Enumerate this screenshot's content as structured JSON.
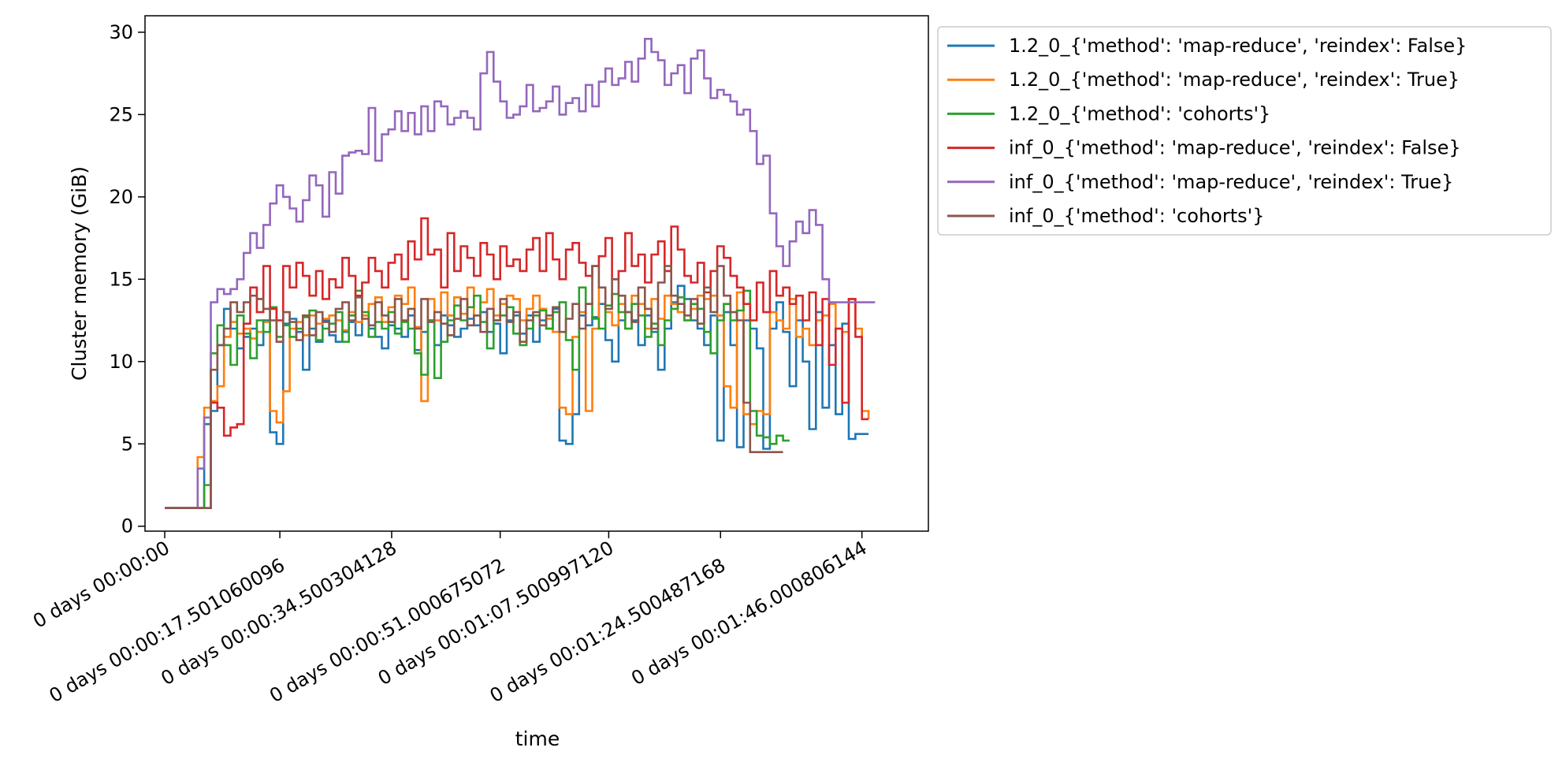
{
  "chart_data": {
    "type": "line",
    "title": "",
    "xlabel": "time",
    "ylabel": "Cluster memory (GiB)",
    "xlim": [
      -3.0,
      116.1
    ],
    "ylim": [
      -0.3,
      31.0
    ],
    "xticks": [
      {
        "value": 0,
        "label": "0 days 00:00:00"
      },
      {
        "value": 17.501060096,
        "label": "0 days 00:00:17.501060096"
      },
      {
        "value": 34.500304128,
        "label": "0 days 00:00:34.500304128"
      },
      {
        "value": 51.000675072,
        "label": "0 days 00:00:51.000675072"
      },
      {
        "value": 67.50099712,
        "label": "0 days 00:01:07.500997120"
      },
      {
        "value": 84.500487168,
        "label": "0 days 00:01:24.500487168"
      },
      {
        "value": 106.000806144,
        "label": "0 days 00:01:46.000806144"
      }
    ],
    "yticks": [
      0,
      5,
      10,
      15,
      20,
      25,
      30
    ],
    "legend_position": "outside-right",
    "series": [
      {
        "name": "1.2_0_{'method': 'map-reduce', 'reindex': False}",
        "color": "#1f77b4",
        "x": [
          0,
          5,
          6,
          7,
          8,
          9,
          10,
          11,
          12,
          13,
          14,
          15,
          16,
          17,
          18,
          19,
          20,
          21,
          22,
          23,
          24,
          25,
          26,
          27,
          28,
          29,
          30,
          31,
          32,
          33,
          34,
          35,
          36,
          37,
          38,
          39,
          40,
          41,
          42,
          43,
          44,
          45,
          46,
          47,
          48,
          49,
          50,
          51,
          52,
          53,
          54,
          55,
          56,
          57,
          58,
          59,
          60,
          61,
          62,
          63,
          64,
          65,
          66,
          67,
          68,
          69,
          70,
          71,
          72,
          73,
          74,
          75,
          76,
          77,
          78,
          79,
          80,
          81,
          82,
          83,
          84,
          85,
          86,
          87,
          88,
          89,
          90,
          91,
          92,
          93,
          94,
          95,
          96,
          97,
          98,
          99,
          100,
          101,
          102,
          103,
          104,
          105,
          106,
          107
        ],
        "y": [
          1.1,
          1.1,
          6.2,
          7.0,
          11.0,
          13.2,
          12.0,
          10.8,
          11.5,
          12.0,
          11.0,
          12.5,
          5.7,
          5.0,
          12.3,
          12.6,
          11.8,
          9.5,
          12.0,
          11.2,
          12.5,
          11.6,
          11.2,
          11.8,
          12.4,
          11.6,
          12.8,
          12.0,
          11.5,
          10.8,
          12.2,
          12.0,
          11.5,
          12.8,
          10.7,
          11.8,
          12.5,
          11.0,
          12.8,
          12.2,
          11.5,
          12.0,
          12.6,
          12.2,
          13.0,
          11.8,
          12.3,
          10.5,
          12.5,
          12.8,
          11.7,
          12.8,
          11.2,
          12.5,
          12.0,
          13.2,
          5.2,
          5.0,
          6.8,
          12.8,
          12.2,
          12.7,
          13.5,
          11.3,
          10.0,
          12.5,
          13.0,
          12.5,
          11.0,
          12.8,
          11.8,
          9.5,
          12.0,
          13.6,
          14.6,
          13.8,
          12.5,
          12.0,
          11.0,
          12.8,
          5.2,
          13.0,
          11.0,
          4.8,
          12.5,
          12.0,
          10.8,
          4.7,
          12.0,
          13.6,
          11.8,
          8.5,
          12.5,
          10.0,
          5.9,
          13.0,
          7.2,
          11.0,
          6.8,
          12.3,
          5.3,
          5.6,
          5.6,
          5.6
        ]
      },
      {
        "name": "1.2_0_{'method': 'map-reduce', 'reindex': True}",
        "color": "#ff7f0e",
        "x": [
          0,
          5,
          6,
          7,
          8,
          9,
          10,
          11,
          12,
          13,
          14,
          15,
          16,
          17,
          18,
          19,
          20,
          21,
          22,
          23,
          24,
          25,
          26,
          27,
          28,
          29,
          30,
          31,
          32,
          33,
          34,
          35,
          36,
          37,
          38,
          39,
          40,
          41,
          42,
          43,
          44,
          45,
          46,
          47,
          48,
          49,
          50,
          51,
          52,
          53,
          54,
          55,
          56,
          57,
          58,
          59,
          60,
          61,
          62,
          63,
          64,
          65,
          66,
          67,
          68,
          69,
          70,
          71,
          72,
          73,
          74,
          75,
          76,
          77,
          78,
          79,
          80,
          81,
          82,
          83,
          84,
          85,
          86,
          87,
          88,
          89,
          90,
          91,
          92,
          93,
          94,
          95,
          96,
          97,
          98,
          99,
          100,
          101,
          102,
          103,
          104,
          105,
          106,
          107
        ],
        "y": [
          1.1,
          4.2,
          7.2,
          7.6,
          8.5,
          11.5,
          12.4,
          11.7,
          12.0,
          11.4,
          11.8,
          12.4,
          7.0,
          6.3,
          8.2,
          12.0,
          12.4,
          11.6,
          12.8,
          12.3,
          12.6,
          12.8,
          12.5,
          11.9,
          13.0,
          12.4,
          12.8,
          13.5,
          13.9,
          12.4,
          13.3,
          14.0,
          13.5,
          14.5,
          12.1,
          7.6,
          13.8,
          12.5,
          14.2,
          12.8,
          13.9,
          12.9,
          14.5,
          12.8,
          13.6,
          14.4,
          12.8,
          13.5,
          14.0,
          13.8,
          12.5,
          13.2,
          14.0,
          13.2,
          12.6,
          11.8,
          7.2,
          6.8,
          11.5,
          13.0,
          7.0,
          12.0,
          14.5,
          13.0,
          12.2,
          13.5,
          12.0,
          14.0,
          13.5,
          12.0,
          13.8,
          12.6,
          14.0,
          13.5,
          13.0,
          12.5,
          13.2,
          14.0,
          13.8,
          14.0,
          12.8,
          8.5,
          7.2,
          14.2,
          6.8,
          6.2,
          7.0,
          6.8,
          13.0,
          12.5,
          12.0,
          13.8,
          11.5,
          12.0,
          11.0,
          12.5,
          12.8,
          13.5,
          12.0,
          11.8,
          13.8,
          12.0,
          7.0,
          6.5
        ]
      },
      {
        "name": "1.2_0_{'method': 'cohorts'}",
        "color": "#2ca02c",
        "x": [
          0,
          5,
          6,
          7,
          8,
          9,
          10,
          11,
          12,
          13,
          14,
          15,
          16,
          17,
          18,
          19,
          20,
          21,
          22,
          23,
          24,
          25,
          26,
          27,
          28,
          29,
          30,
          31,
          32,
          33,
          34,
          35,
          36,
          37,
          38,
          39,
          40,
          41,
          42,
          43,
          44,
          45,
          46,
          47,
          48,
          49,
          50,
          51,
          52,
          53,
          54,
          55,
          56,
          57,
          58,
          59,
          60,
          61,
          62,
          63,
          64,
          65,
          66,
          67,
          68,
          69,
          70,
          71,
          72,
          73,
          74,
          75,
          76,
          77,
          78,
          79,
          80,
          81,
          82,
          83,
          84,
          85,
          86,
          87,
          88,
          89,
          90,
          91,
          92,
          93,
          94,
          95
        ],
        "y": [
          1.1,
          1.1,
          2.5,
          10.5,
          12.2,
          11.0,
          9.8,
          12.8,
          11.7,
          10.2,
          12.5,
          11.8,
          13.3,
          11.5,
          12.2,
          11.5,
          12.0,
          12.7,
          13.1,
          11.3,
          12.0,
          12.3,
          13.0,
          11.2,
          12.8,
          14.3,
          13.0,
          11.5,
          12.4,
          12.0,
          13.0,
          11.7,
          12.4,
          12.0,
          10.5,
          9.2,
          12.5,
          9.0,
          11.2,
          12.5,
          13.4,
          12.5,
          13.3,
          14.0,
          12.4,
          10.8,
          12.5,
          12.8,
          13.3,
          11.7,
          11.0,
          12.0,
          12.8,
          13.1,
          12.0,
          13.0,
          13.6,
          11.3,
          9.5,
          14.5,
          13.5,
          12.6,
          12.0,
          13.4,
          14.1,
          13.0,
          12.0,
          13.5,
          12.8,
          11.5,
          12.3,
          11.0,
          12.5,
          13.2,
          13.9,
          12.5,
          13.5,
          13.2,
          11.8,
          10.5,
          12.5,
          13.5,
          12.5,
          13.1,
          14.3,
          7.0,
          5.5,
          5.4,
          5.0,
          5.5,
          5.2,
          5.2
        ]
      },
      {
        "name": "inf_0_{'method': 'map-reduce', 'reindex': False}",
        "color": "#d62728",
        "x": [
          0,
          6,
          7,
          8,
          9,
          10,
          11,
          12,
          13,
          14,
          15,
          16,
          17,
          18,
          19,
          20,
          21,
          22,
          23,
          24,
          25,
          26,
          27,
          28,
          29,
          30,
          31,
          32,
          33,
          34,
          35,
          36,
          37,
          38,
          39,
          40,
          41,
          42,
          43,
          44,
          45,
          46,
          47,
          48,
          49,
          50,
          51,
          52,
          53,
          54,
          55,
          56,
          57,
          58,
          59,
          60,
          61,
          62,
          63,
          64,
          65,
          66,
          67,
          68,
          69,
          70,
          71,
          72,
          73,
          74,
          75,
          76,
          77,
          78,
          79,
          80,
          81,
          82,
          83,
          84,
          85,
          86,
          87,
          88,
          89,
          90,
          91,
          92,
          93,
          94,
          95,
          96,
          97,
          98,
          99,
          100,
          101,
          102,
          103,
          104,
          105,
          106,
          107
        ],
        "y": [
          1.1,
          1.1,
          7.5,
          7.2,
          5.5,
          6.0,
          6.2,
          12.3,
          14.5,
          13.0,
          15.8,
          13.2,
          12.5,
          15.8,
          14.5,
          16.0,
          15.2,
          14.0,
          15.5,
          13.8,
          15.0,
          14.5,
          16.3,
          15.2,
          14.0,
          14.8,
          16.3,
          15.5,
          14.5,
          16.0,
          16.5,
          15.0,
          17.3,
          16.2,
          18.7,
          16.5,
          16.8,
          14.5,
          17.8,
          15.5,
          17.0,
          16.3,
          15.2,
          17.2,
          16.5,
          15.0,
          17.0,
          15.8,
          16.2,
          15.5,
          16.8,
          17.5,
          15.5,
          17.8,
          16.2,
          15.0,
          16.8,
          17.2,
          16.0,
          15.2,
          15.8,
          16.4,
          17.5,
          15.0,
          15.5,
          17.8,
          15.8,
          16.5,
          14.8,
          16.5,
          17.3,
          15.5,
          18.2,
          16.8,
          15.2,
          14.8,
          16.0,
          14.2,
          15.5,
          17.0,
          16.3,
          15.2,
          14.5,
          13.5,
          12.5,
          14.8,
          13.0,
          15.5,
          14.0,
          14.5,
          13.5,
          14.0,
          12.5,
          14.2,
          11.0,
          13.8,
          9.8,
          12.0,
          7.5,
          13.8,
          11.5,
          6.5,
          6.5
        ]
      },
      {
        "name": "inf_0_{'method': 'map-reduce', 'reindex': True}",
        "color": "#9467bd",
        "x": [
          0,
          5,
          6,
          7,
          8,
          9,
          10,
          11,
          12,
          13,
          14,
          15,
          16,
          17,
          18,
          19,
          20,
          21,
          22,
          23,
          24,
          25,
          26,
          27,
          28,
          29,
          30,
          31,
          32,
          33,
          34,
          35,
          36,
          37,
          38,
          39,
          40,
          41,
          42,
          43,
          44,
          45,
          46,
          47,
          48,
          49,
          50,
          51,
          52,
          53,
          54,
          55,
          56,
          57,
          58,
          59,
          60,
          61,
          62,
          63,
          64,
          65,
          66,
          67,
          68,
          69,
          70,
          71,
          72,
          73,
          74,
          75,
          76,
          77,
          78,
          79,
          80,
          81,
          82,
          83,
          84,
          85,
          86,
          87,
          88,
          89,
          90,
          91,
          92,
          93,
          94,
          95,
          96,
          97,
          98,
          99,
          100,
          101,
          102,
          103,
          104,
          105,
          106,
          107,
          108
        ],
        "y": [
          1.1,
          3.5,
          6.6,
          13.6,
          14.4,
          14.1,
          14.4,
          15.0,
          16.6,
          17.8,
          16.9,
          18.3,
          19.6,
          20.7,
          20.0,
          19.3,
          18.5,
          19.8,
          21.3,
          20.7,
          18.8,
          21.5,
          20.2,
          22.5,
          22.7,
          22.8,
          22.6,
          25.4,
          22.2,
          23.8,
          24.1,
          25.2,
          24.0,
          25.1,
          23.8,
          25.5,
          24.0,
          25.8,
          25.5,
          24.4,
          24.8,
          25.2,
          24.8,
          24.1,
          27.5,
          28.8,
          27.0,
          25.8,
          24.8,
          25.0,
          25.5,
          26.8,
          25.2,
          25.4,
          25.8,
          26.7,
          25.0,
          25.7,
          26.0,
          25.2,
          26.8,
          25.5,
          27.0,
          27.8,
          26.8,
          27.2,
          28.2,
          27.0,
          28.4,
          29.6,
          28.8,
          28.3,
          26.8,
          27.5,
          28.0,
          26.3,
          28.4,
          28.9,
          27.2,
          26.0,
          26.5,
          26.2,
          25.8,
          25.0,
          25.3,
          24.0,
          22.0,
          22.5,
          19.0,
          17.0,
          15.8,
          17.3,
          18.5,
          17.8,
          19.2,
          18.3,
          15.0,
          13.6,
          13.6,
          13.6,
          13.6,
          13.6,
          13.6,
          13.6,
          13.6
        ]
      },
      {
        "name": "inf_0_{'method': 'cohorts'}",
        "color": "#8c564b",
        "x": [
          0,
          5,
          6,
          7,
          8,
          9,
          10,
          11,
          12,
          13,
          14,
          15,
          16,
          17,
          18,
          19,
          20,
          21,
          22,
          23,
          24,
          25,
          26,
          27,
          28,
          29,
          30,
          31,
          32,
          33,
          34,
          35,
          36,
          37,
          38,
          39,
          40,
          41,
          42,
          43,
          44,
          45,
          46,
          47,
          48,
          49,
          50,
          51,
          52,
          53,
          54,
          55,
          56,
          57,
          58,
          59,
          60,
          61,
          62,
          63,
          64,
          65,
          66,
          67,
          68,
          69,
          70,
          71,
          72,
          73,
          74,
          75,
          76,
          77,
          78,
          79,
          80,
          81,
          82,
          83,
          84,
          85,
          86,
          87,
          88,
          89,
          90,
          91,
          92,
          93,
          94
        ],
        "y": [
          1.1,
          1.1,
          1.1,
          9.5,
          11.0,
          12.0,
          13.6,
          13.0,
          13.6,
          14.0,
          13.8,
          13.2,
          12.5,
          11.2,
          13.0,
          12.4,
          11.3,
          12.8,
          11.6,
          13.0,
          12.4,
          11.8,
          13.2,
          13.6,
          12.5,
          13.9,
          12.6,
          12.2,
          13.6,
          12.8,
          12.4,
          13.8,
          12.5,
          13.2,
          12.0,
          13.8,
          12.4,
          13.0,
          12.3,
          11.6,
          12.6,
          13.8,
          12.2,
          12.8,
          11.8,
          13.2,
          12.5,
          13.8,
          12.4,
          13.0,
          11.2,
          12.5,
          13.0,
          12.2,
          12.8,
          13.3,
          11.8,
          12.6,
          13.5,
          12.0,
          13.5,
          15.8,
          14.5,
          13.2,
          15.0,
          14.0,
          13.0,
          12.4,
          14.5,
          13.2,
          12.0,
          14.8,
          15.8,
          14.0,
          13.5,
          12.8,
          13.8,
          12.3,
          14.5,
          13.0,
          15.8,
          14.0,
          13.0,
          12.5,
          7.5,
          4.5,
          4.5,
          4.5,
          4.5,
          4.5,
          4.5
        ]
      }
    ]
  }
}
